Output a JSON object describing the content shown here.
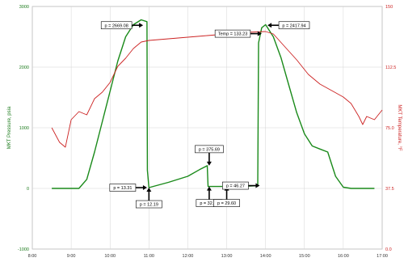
{
  "chart_data": {
    "type": "line",
    "title": "",
    "xlabel": "",
    "x_ticks": [
      "8:00",
      "9:00",
      "10:00",
      "11:00",
      "12:00",
      "13:00",
      "14:00",
      "15:00",
      "16:00",
      "17:00"
    ],
    "xlim": [
      8.0,
      17.0
    ],
    "y_left": {
      "label": "MKT Pressure, psia",
      "ticks": [
        "-1000",
        "0",
        "1000",
        "2000",
        "3000"
      ],
      "lim": [
        -1000,
        3000
      ],
      "color": "#1a7a1a"
    },
    "y_right": {
      "label": "MKT Temperature, °F",
      "ticks": [
        "0.0",
        "37.5",
        "75.0",
        "112.5",
        "150"
      ],
      "lim": [
        0,
        150
      ],
      "color": "#cc2222"
    },
    "grid": true,
    "series": [
      {
        "axis": "left",
        "color": "#1a8a1a",
        "x": [
          8.5,
          9.2,
          9.4,
          9.6,
          9.8,
          10.0,
          10.2,
          10.4,
          10.6,
          10.8,
          10.95,
          10.96,
          11.0,
          11.5,
          12.0,
          12.3,
          12.5,
          12.52,
          12.6,
          13.0,
          13.4,
          13.8,
          13.82,
          13.9,
          14.0,
          14.2,
          14.4,
          14.6,
          14.8,
          15.0,
          15.2,
          15.4,
          15.6,
          15.8,
          16.0,
          16.2,
          16.4,
          16.6,
          16.8
        ],
        "y": [
          0,
          0,
          150,
          600,
          1100,
          1600,
          2100,
          2500,
          2700,
          2780,
          2750,
          300,
          13,
          100,
          200,
          310,
          375,
          32,
          32,
          32,
          32,
          46,
          2400,
          2650,
          2700,
          2500,
          2150,
          1700,
          1250,
          900,
          700,
          650,
          600,
          200,
          20,
          0,
          0,
          0,
          0
        ]
      },
      {
        "axis": "right",
        "color": "#cc2222",
        "x": [
          8.5,
          8.7,
          8.85,
          9.0,
          9.2,
          9.4,
          9.6,
          9.8,
          10.0,
          10.2,
          10.4,
          10.6,
          10.8,
          11.0,
          11.5,
          12.0,
          12.5,
          13.0,
          13.5,
          14.0,
          14.2,
          14.5,
          14.8,
          15.1,
          15.4,
          15.7,
          16.0,
          16.2,
          16.4,
          16.5,
          16.6,
          16.8,
          17.0
        ],
        "y": [
          75,
          66,
          63,
          80,
          85,
          83,
          93,
          97,
          103,
          113,
          118,
          124,
          128,
          129,
          130,
          131,
          132,
          133,
          134,
          134.5,
          133,
          125,
          117,
          108,
          102,
          98,
          94,
          90,
          82,
          77,
          82,
          80,
          86
        ]
      }
    ],
    "annotations": [
      {
        "text": "p = 2669.08",
        "x": 10.85,
        "y": 2690,
        "axis": "left",
        "arrow": "right"
      },
      {
        "text": "p = 13.31",
        "x": 10.95,
        "y": 13,
        "axis": "left",
        "arrow": "right"
      },
      {
        "text": "p = 12.19",
        "x": 11.0,
        "y": 13,
        "axis": "left",
        "arrow": "up"
      },
      {
        "text": "p = 375.69",
        "x": 12.55,
        "y": 375,
        "axis": "left",
        "arrow": "down"
      },
      {
        "text": "p = 32.56",
        "x": 12.55,
        "y": 32,
        "axis": "left",
        "arrow": "up"
      },
      {
        "text": "p = 29.60",
        "x": 13.0,
        "y": 32,
        "axis": "left",
        "arrow": "up"
      },
      {
        "text": "p = 46.27",
        "x": 13.85,
        "y": 46,
        "axis": "left",
        "arrow": "right"
      },
      {
        "text": "Temp = 133.23",
        "x": 13.9,
        "y": 133.2,
        "axis": "right",
        "arrow": "right"
      },
      {
        "text": "p = 2417.94",
        "x": 14.05,
        "y": 2690,
        "axis": "left",
        "arrow": "left"
      }
    ]
  }
}
